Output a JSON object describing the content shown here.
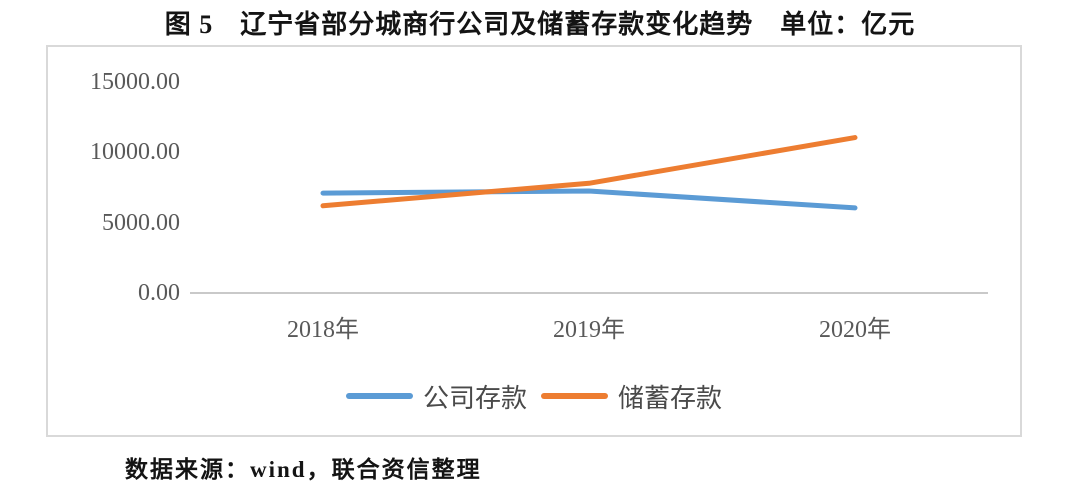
{
  "figure": {
    "title": "图 5　辽宁省部分城商行公司及储蓄存款变化趋势　单位：亿元",
    "source_note": "数据来源：wind，联合资信整理"
  },
  "chart_data": {
    "type": "line",
    "title": "图 5　辽宁省部分城商行公司及储蓄存款变化趋势",
    "unit_label": "单位：亿元",
    "categories": [
      "2018年",
      "2019年",
      "2020年"
    ],
    "series": [
      {
        "name": "公司存款",
        "color": "#5B9BD5",
        "values": [
          7100,
          7250,
          6050
        ]
      },
      {
        "name": "储蓄存款",
        "color": "#ED7D31",
        "values": [
          6200,
          7800,
          11050
        ]
      }
    ],
    "xlabel": "",
    "ylabel": "",
    "ylim": [
      0,
      15000
    ],
    "yticks": [
      {
        "value": 0,
        "label": "0.00"
      },
      {
        "value": 5000,
        "label": "5000.00"
      },
      {
        "value": 10000,
        "label": "10000.00"
      },
      {
        "value": 15000,
        "label": "15000.00"
      }
    ],
    "grid": false,
    "legend_position": "bottom",
    "colors": {
      "axis_line": "#c9c9c9",
      "plot_border": "#d9d9d9",
      "tick_text": "#595959"
    }
  }
}
